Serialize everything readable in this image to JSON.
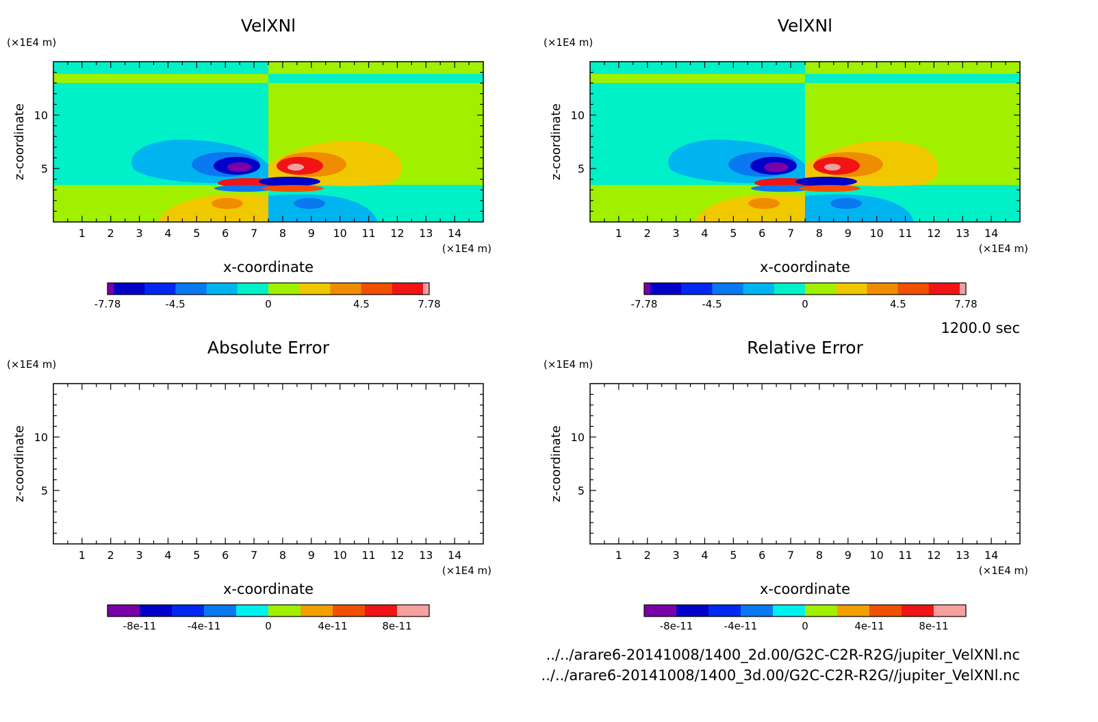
{
  "time_label": "1200.0 sec",
  "files": [
    "../../arare6-20141008/1400_2d.00/G2C-C2R-R2G/jupiter_VelXNl.nc",
    "../../arare6-20141008/1400_3d.00/G2C-C2R-R2G//jupiter_VelXNl.nc"
  ],
  "colors": {
    "levels10": [
      "#7a00a8",
      "#0000c8",
      "#0028f0",
      "#0a78f0",
      "#00b4f0",
      "#00f0c8",
      "#a0f000",
      "#f0c800",
      "#f08c00",
      "#f05000",
      "#f01414",
      "#f0a0a0"
    ],
    "levels_err": [
      "#7a00a8",
      "#0000c8",
      "#0028f0",
      "#0a78f0",
      "#00f0f0",
      "#a0f000",
      "#f0a000",
      "#f05000",
      "#f01414",
      "#f8a0a0"
    ]
  },
  "chart_data": [
    {
      "type": "heatmap",
      "title": "VelXNl",
      "xlabel": "x-coordinate",
      "ylabel": "z-coordinate",
      "x_unit": "(×1E4 m)",
      "y_unit": "(×1E4 m)",
      "xlim": [
        0,
        15
      ],
      "ylim": [
        0,
        15
      ],
      "x_ticks": [
        "1",
        "2",
        "3",
        "4",
        "5",
        "6",
        "7",
        "8",
        "9",
        "10",
        "11",
        "12",
        "13",
        "14"
      ],
      "y_ticks": [
        "5",
        "10"
      ],
      "colorbar_labels": [
        "-7.78",
        "-4.5",
        "0",
        "4.5",
        "7.78"
      ],
      "colorbar_range": [
        -7.78,
        7.78
      ]
    },
    {
      "type": "heatmap",
      "title": "VelXNl",
      "xlabel": "x-coordinate",
      "ylabel": "z-coordinate",
      "x_unit": "(×1E4 m)",
      "y_unit": "(×1E4 m)",
      "xlim": [
        0,
        15
      ],
      "ylim": [
        0,
        15
      ],
      "x_ticks": [
        "1",
        "2",
        "3",
        "4",
        "5",
        "6",
        "7",
        "8",
        "9",
        "10",
        "11",
        "12",
        "13",
        "14"
      ],
      "y_ticks": [
        "5",
        "10"
      ],
      "colorbar_labels": [
        "-7.78",
        "-4.5",
        "0",
        "4.5",
        "7.78"
      ],
      "colorbar_range": [
        -7.78,
        7.78
      ]
    },
    {
      "type": "heatmap",
      "title": "Absolute Error",
      "xlabel": "x-coordinate",
      "ylabel": "z-coordinate",
      "x_unit": "(×1E4 m)",
      "y_unit": "(×1E4 m)",
      "xlim": [
        0,
        15
      ],
      "ylim": [
        0,
        15
      ],
      "x_ticks": [
        "1",
        "2",
        "3",
        "4",
        "5",
        "6",
        "7",
        "8",
        "9",
        "10",
        "11",
        "12",
        "13",
        "14"
      ],
      "y_ticks": [
        "5",
        "10"
      ],
      "colorbar_labels": [
        "-8e-11",
        "-4e-11",
        "0",
        "4e-11",
        "8e-11"
      ],
      "colorbar_range": [
        -1e-10,
        1e-10
      ]
    },
    {
      "type": "heatmap",
      "title": "Relative Error",
      "xlabel": "x-coordinate",
      "ylabel": "z-coordinate",
      "x_unit": "(×1E4 m)",
      "y_unit": "(×1E4 m)",
      "xlim": [
        0,
        15
      ],
      "ylim": [
        0,
        15
      ],
      "x_ticks": [
        "1",
        "2",
        "3",
        "4",
        "5",
        "6",
        "7",
        "8",
        "9",
        "10",
        "11",
        "12",
        "13",
        "14"
      ],
      "y_ticks": [
        "5",
        "10"
      ],
      "colorbar_labels": [
        "-8e-11",
        "-4e-11",
        "0",
        "4e-11",
        "8e-11"
      ],
      "colorbar_range": [
        -1e-10,
        1e-10
      ]
    }
  ]
}
